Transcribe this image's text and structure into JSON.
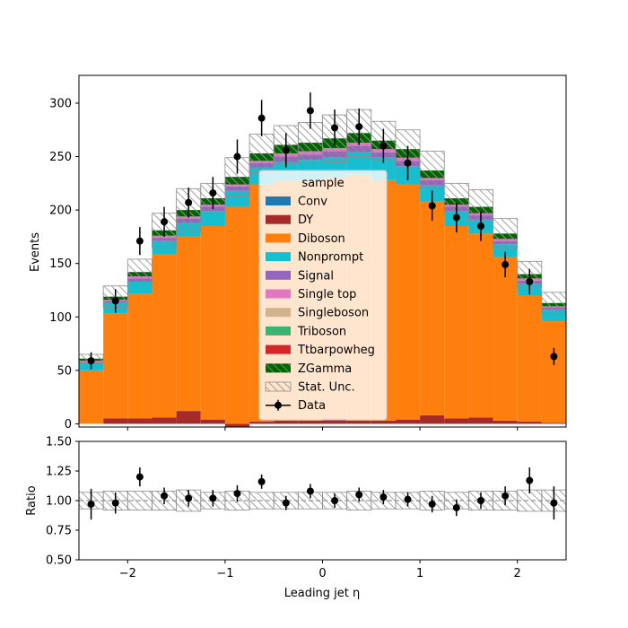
{
  "chart_data": {
    "type": "bar",
    "stacked": true,
    "xlabel": "Leading jet  η",
    "main": {
      "ylabel": "Events",
      "ylim": [
        -3,
        326
      ],
      "yticks": [
        0,
        50,
        100,
        150,
        200,
        250,
        300
      ],
      "grid": false
    },
    "ratio": {
      "ylabel": "Ratio",
      "ylim": [
        0.5,
        1.5
      ],
      "yticks": [
        "0.50",
        "0.75",
        "1.00",
        "1.25",
        "1.50"
      ],
      "reference_line": 1.0
    },
    "xlim": [
      -2.5,
      2.5
    ],
    "xticks": [
      -2,
      -1,
      0,
      1,
      2
    ],
    "bin_edges": [
      -2.5,
      -2.25,
      -2.0,
      -1.75,
      -1.5,
      -1.25,
      -1.0,
      -0.75,
      -0.5,
      -0.25,
      0.0,
      0.25,
      0.5,
      0.75,
      1.0,
      1.25,
      1.5,
      1.75,
      2.0,
      2.25,
      2.5
    ],
    "legend": {
      "title": "sample",
      "placement": "center",
      "entries": [
        "Conv",
        "DY",
        "Diboson",
        "Nonprompt",
        "Signal",
        "Single top",
        "Singleboson",
        "Triboson",
        "Ttbarpowheg",
        "ZGamma",
        "Stat. Unc.",
        "Data"
      ]
    },
    "series": [
      {
        "name": "Conv",
        "color": "#1f77b4",
        "values": [
          0,
          0,
          0,
          0,
          0,
          0,
          0,
          0,
          0,
          0,
          0,
          0,
          0,
          0,
          0,
          0,
          0,
          0,
          0,
          0
        ]
      },
      {
        "name": "DY",
        "color": "#a52a2a",
        "values": [
          0,
          5,
          5,
          6,
          12,
          4,
          -3,
          2,
          3,
          3,
          5,
          3,
          3,
          4,
          8,
          5,
          6,
          3,
          2,
          1
        ]
      },
      {
        "name": "Diboson",
        "color": "#ff7f0e",
        "values": [
          50,
          98,
          117,
          153,
          163,
          181,
          203,
          222,
          225,
          225,
          225,
          230,
          225,
          220,
          200,
          180,
          172,
          153,
          118,
          95
        ]
      },
      {
        "name": "Nonprompt",
        "color": "#17becf",
        "values": [
          7,
          10,
          11,
          12,
          13,
          14,
          15,
          16,
          17,
          19,
          19,
          21,
          21,
          17,
          15,
          14,
          13,
          12,
          11,
          11
        ]
      },
      {
        "name": "Signal",
        "color": "#9467bd",
        "values": [
          1,
          2,
          3,
          3,
          4,
          4,
          4,
          4,
          5,
          5,
          6,
          6,
          5,
          5,
          5,
          4,
          4,
          3,
          3,
          2
        ]
      },
      {
        "name": "Single top",
        "color": "#e377c2",
        "values": [
          1,
          1,
          2,
          2,
          2,
          2,
          2,
          2,
          3,
          3,
          3,
          3,
          3,
          3,
          2,
          2,
          2,
          2,
          2,
          1
        ]
      },
      {
        "name": "Singleboson",
        "color": "#d2b48c",
        "values": [
          0,
          0,
          0,
          0,
          0,
          0,
          0,
          0,
          0,
          0,
          0,
          0,
          0,
          0,
          0,
          0,
          0,
          0,
          0,
          0
        ]
      },
      {
        "name": "Triboson",
        "color": "#3cb371",
        "values": [
          0,
          0,
          0,
          0,
          0,
          0,
          0,
          0,
          0,
          0,
          0,
          0,
          0,
          0,
          0,
          0,
          0,
          0,
          0,
          0
        ]
      },
      {
        "name": "Ttbarpowheg",
        "color": "#d62728",
        "values": [
          0,
          0,
          0,
          0,
          0,
          0,
          0,
          0,
          0,
          0,
          0,
          0,
          0,
          0,
          0,
          0,
          0,
          0,
          0,
          0
        ]
      },
      {
        "name": "ZGamma",
        "color": "#006400",
        "values": [
          2,
          3,
          4,
          5,
          6,
          6,
          7,
          7,
          8,
          8,
          9,
          9,
          8,
          8,
          7,
          6,
          6,
          5,
          4,
          3
        ]
      }
    ],
    "stat_unc": [
      4,
      10,
      12,
      16,
      20,
      14,
      18,
      18,
      18,
      19,
      22,
      22,
      18,
      18,
      18,
      14,
      16,
      14,
      12,
      10
    ],
    "data": {
      "name": "Data",
      "values": [
        59,
        115,
        171,
        189,
        207,
        216,
        250,
        286,
        256,
        293,
        277,
        278,
        260,
        244,
        204,
        193,
        185,
        149,
        133,
        63
      ],
      "errors": [
        8,
        11,
        13,
        14,
        14,
        15,
        16,
        17,
        16,
        17,
        17,
        17,
        16,
        16,
        14,
        14,
        14,
        12,
        12,
        8
      ]
    },
    "ratio_values": [
      0.97,
      0.98,
      1.2,
      1.04,
      1.02,
      1.02,
      1.06,
      1.16,
      0.98,
      1.08,
      1.0,
      1.05,
      1.03,
      1.01,
      0.97,
      0.94,
      1.0,
      1.04,
      1.17,
      0.98
    ],
    "ratio_errors": [
      0.13,
      0.09,
      0.08,
      0.07,
      0.07,
      0.07,
      0.07,
      0.06,
      0.06,
      0.06,
      0.06,
      0.06,
      0.06,
      0.06,
      0.07,
      0.07,
      0.07,
      0.08,
      0.11,
      0.14
    ],
    "ratio_unc": [
      0.07,
      0.08,
      0.08,
      0.08,
      0.09,
      0.07,
      0.08,
      0.07,
      0.07,
      0.07,
      0.07,
      0.08,
      0.07,
      0.07,
      0.08,
      0.07,
      0.08,
      0.08,
      0.09,
      0.09
    ]
  }
}
